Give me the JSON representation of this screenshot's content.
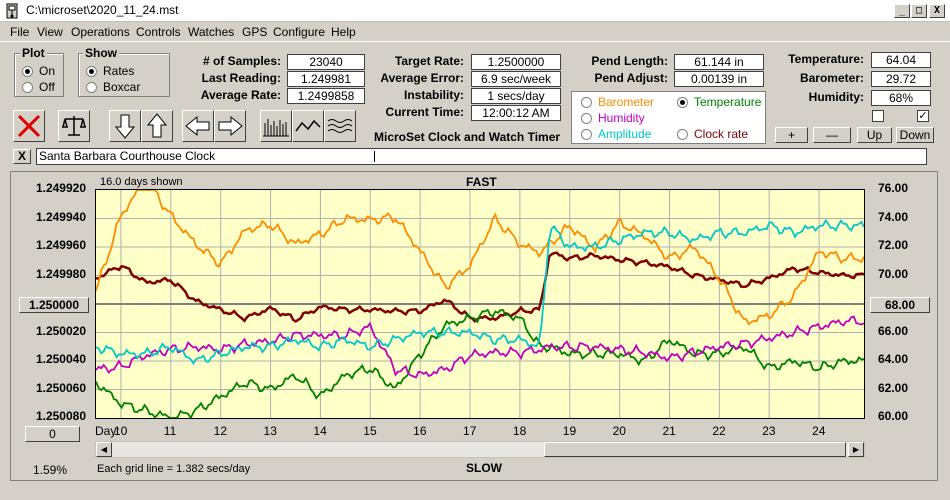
{
  "window": {
    "title": "C:\\microset\\2020_11_24.mst",
    "min": "_",
    "max": "□",
    "close": "X"
  },
  "menu": [
    "File",
    "View",
    "Operations",
    "Controls",
    "Watches",
    "GPS",
    "Configure",
    "Help"
  ],
  "plot_group": {
    "title": "Plot",
    "on": "On",
    "off": "Off"
  },
  "show_group": {
    "title": "Show",
    "rates": "Rates",
    "boxcar": "Boxcar"
  },
  "stats": {
    "samples_label": "# of Samples:",
    "samples": "23040",
    "last_label": "Last Reading:",
    "last": "1.249981",
    "avg_rate_label": "Average Rate:",
    "avg_rate": "1.2499858",
    "target_label": "Target Rate:",
    "target": "1.2500000",
    "avg_err_label": "Average Error:",
    "avg_err": "6.9 sec/week",
    "instab_label": "Instability:",
    "instab": "1 secs/day",
    "time_label": "Current Time:",
    "time": "12:00:12 AM",
    "pend_len_label": "Pend Length:",
    "pend_len": "61.144 in",
    "pend_adj_label": "Pend Adjust:",
    "pend_adj": "0.00139 in",
    "temp_label": "Temperature:",
    "temp": "64.04",
    "baro_label": "Barometer:",
    "baro": "29.72",
    "hum_label": "Humidity:",
    "hum": "68%"
  },
  "app_caption": "MicroSet Clock and Watch Timer",
  "right_axis_group": {
    "barometer": "Barometer",
    "temperature": "Temperature",
    "humidity": "Humidity",
    "amplitude": "Amplitude",
    "clockrate": "Clock rate"
  },
  "colors": {
    "barometer": "#ff8c00",
    "temperature": "#008000",
    "humidity": "#c000c0",
    "amplitude": "#00c8c8",
    "clockrate": "#800000"
  },
  "adjust_buttons": [
    "+",
    "—",
    "Up",
    "Down"
  ],
  "clock_name": "Santa Barbara Courthouse Clock",
  "close_x": "X",
  "graph": {
    "days_shown": "16.0 days shown",
    "fast": "FAST",
    "slow": "SLOW",
    "left_axis": [
      "1.249920",
      "1.249940",
      "1.249960",
      "1.249980",
      "1.250000",
      "1.250020",
      "1.250040",
      "1.250060",
      "1.250080"
    ],
    "center_value": "1.250000",
    "right_axis": [
      "76.00",
      "74.00",
      "72.00",
      "70.00",
      "68.00",
      "66.00",
      "64.00",
      "62.00",
      "60.00"
    ],
    "right_center": "68.00",
    "day_label": "Day:",
    "days": [
      "10",
      "11",
      "12",
      "13",
      "14",
      "15",
      "16",
      "17",
      "18",
      "19",
      "20",
      "21",
      "22",
      "23",
      "24"
    ],
    "zero_btn": "0",
    "percent": "1.59%",
    "grid_note": "Each grid line = 1.382 secs/day"
  },
  "chart_data": {
    "type": "line",
    "x_label": "Day:",
    "x": [
      9.5,
      10,
      10.5,
      11,
      11.5,
      12,
      12.5,
      13,
      13.5,
      14,
      14.5,
      15,
      15.5,
      16,
      16.5,
      17,
      17.5,
      18,
      18.4,
      18.6,
      19,
      19.5,
      20,
      20.5,
      21,
      21.5,
      22,
      22.5,
      23,
      23.5,
      24,
      24.5
    ],
    "left_ylim": [
      1.24992,
      1.25008
    ],
    "right_ylim": [
      60,
      76
    ],
    "series": [
      {
        "key": "clockrate",
        "axis": "left",
        "values": [
          1.249982,
          1.249973,
          1.249985,
          1.249983,
          1.249998,
          1.250004,
          1.25001,
          1.250003,
          1.250011,
          1.250002,
          1.250004,
          1.250004,
          1.250005,
          1.250005,
          1.249997,
          1.25001,
          1.25001,
          1.250005,
          1.250004,
          1.249964,
          1.249968,
          1.249966,
          1.249969,
          1.249971,
          1.249974,
          1.24998,
          1.249983,
          1.249987,
          1.249982,
          1.249975,
          1.249978,
          1.24998
        ]
      },
      {
        "key": "barometer",
        "axis": "left",
        "values": [
          1.249991,
          1.249938,
          1.249912,
          1.249938,
          1.249958,
          1.249972,
          1.249948,
          1.249944,
          1.249958,
          1.249951,
          1.24994,
          1.249941,
          1.249939,
          1.249963,
          1.249988,
          1.249973,
          1.24994,
          1.249958,
          1.249964,
          1.249958,
          1.249945,
          1.249961,
          1.249943,
          1.249952,
          1.249968,
          1.24996,
          1.249982,
          1.250013,
          1.250008,
          1.249994,
          1.249963,
          1.249968
        ]
      },
      {
        "key": "temperature",
        "axis": "right",
        "values": [
          62.5,
          61.0,
          60.5,
          60.0,
          60.5,
          61.5,
          62.5,
          62.0,
          63.0,
          61.5,
          63.0,
          63.5,
          62.0,
          64.5,
          66.5,
          67.0,
          67.5,
          67.0,
          65.0,
          65.0,
          64.5,
          64.5,
          64.5,
          64.0,
          65.5,
          64.5,
          64.5,
          65.0,
          63.5,
          64.0,
          63.5,
          64.0
        ]
      },
      {
        "key": "humidity",
        "axis": "left",
        "values": [
          1.250046,
          1.250044,
          1.250036,
          1.250032,
          1.25003,
          1.250032,
          1.250028,
          1.250026,
          1.250022,
          1.250022,
          1.250022,
          1.250016,
          1.250046,
          1.25005,
          1.250046,
          1.250036,
          1.250034,
          1.250034,
          1.250032,
          1.25003,
          1.25003,
          1.25003,
          1.250032,
          1.250034,
          1.250038,
          1.250034,
          1.25003,
          1.250028,
          1.250024,
          1.25002,
          1.250016,
          1.250012
        ]
      },
      {
        "key": "amplitude",
        "axis": "right",
        "values": [
          65.0,
          64.5,
          64.5,
          65.0,
          64.0,
          64.5,
          65.0,
          65.0,
          65.5,
          65.0,
          65.5,
          65.0,
          65.5,
          66.0,
          66.0,
          66.0,
          65.5,
          65.5,
          65.0,
          73.5,
          72.0,
          72.0,
          72.5,
          73.0,
          73.0,
          72.5,
          73.0,
          73.0,
          73.5,
          73.0,
          73.5,
          73.5
        ]
      }
    ]
  }
}
